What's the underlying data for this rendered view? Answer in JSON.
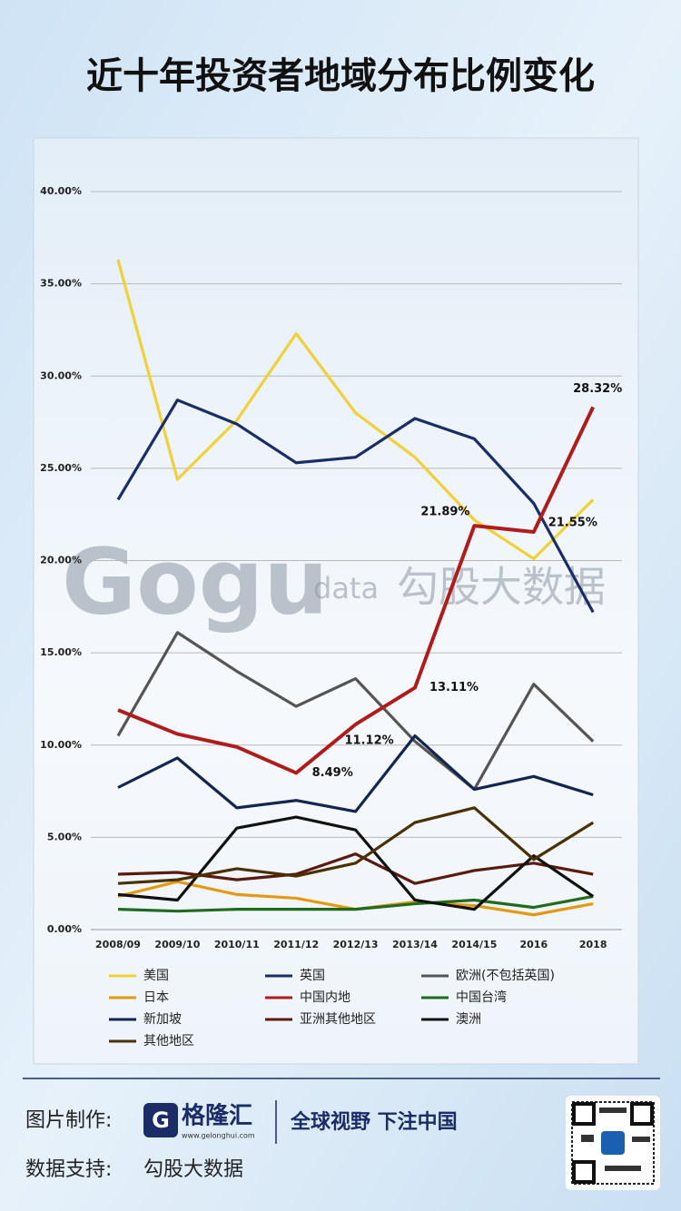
{
  "chart_data": {
    "type": "line",
    "title": "近十年投资者地域分布比例变化",
    "categories": [
      "2008/09",
      "2009/10",
      "2010/11",
      "2011/12",
      "2012/13",
      "2013/14",
      "2014/15",
      "2016",
      "2018"
    ],
    "ylim": [
      0,
      40
    ],
    "yticks": [
      {
        "value": 0,
        "label": "0.00%"
      },
      {
        "value": 5,
        "label": "5.00%"
      },
      {
        "value": 10,
        "label": "10.00%"
      },
      {
        "value": 15,
        "label": "15.00%"
      },
      {
        "value": 20,
        "label": "20.00%"
      },
      {
        "value": 25,
        "label": "25.00%"
      },
      {
        "value": 30,
        "label": "30.00%"
      },
      {
        "value": 35,
        "label": "35.00%"
      },
      {
        "value": 40,
        "label": "40.00%"
      }
    ],
    "grid": true,
    "series": [
      {
        "name": "美国",
        "color": "#f0d13a",
        "values": [
          36.3,
          24.4,
          27.6,
          32.3,
          28.0,
          25.6,
          22.2,
          20.1,
          23.3
        ]
      },
      {
        "name": "英国",
        "color": "#1b2d66",
        "values": [
          23.3,
          28.7,
          27.4,
          25.3,
          25.6,
          27.7,
          26.6,
          23.1,
          17.2
        ]
      },
      {
        "name": "欧洲(不包括英国)",
        "color": "#555555",
        "values": [
          10.5,
          16.1,
          14.0,
          12.1,
          13.6,
          10.2,
          7.6,
          13.3,
          10.2
        ]
      },
      {
        "name": "日本",
        "color": "#e39a12",
        "values": [
          1.8,
          2.6,
          1.9,
          1.7,
          1.1,
          1.5,
          1.3,
          0.8,
          1.4
        ]
      },
      {
        "name": "中国内地",
        "color": "#b01c1c",
        "values": [
          11.9,
          10.6,
          9.9,
          8.49,
          11.12,
          13.11,
          21.89,
          21.55,
          28.32
        ],
        "value_labels": [
          null,
          null,
          null,
          "8.49%",
          "11.12%",
          "13.11%",
          "21.89%",
          "21.55%",
          "28.32%"
        ]
      },
      {
        "name": "中国台湾",
        "color": "#1f6b1f",
        "values": [
          1.1,
          1.0,
          1.1,
          1.1,
          1.1,
          1.4,
          1.6,
          1.2,
          1.8
        ]
      },
      {
        "name": "新加坡",
        "color": "#14264f",
        "values": [
          7.7,
          9.3,
          6.6,
          7.0,
          6.4,
          10.5,
          7.6,
          8.3,
          7.3
        ]
      },
      {
        "name": "亚洲其他地区",
        "color": "#5a1a0c",
        "values": [
          3.0,
          3.1,
          2.7,
          3.0,
          4.1,
          2.5,
          3.2,
          3.6,
          3.0
        ]
      },
      {
        "name": "澳洲",
        "color": "#111111",
        "values": [
          1.9,
          1.6,
          5.5,
          6.1,
          5.4,
          1.6,
          1.1,
          4.0,
          1.8
        ]
      },
      {
        "name": "其他地区",
        "color": "#4a3104",
        "values": [
          2.5,
          2.7,
          3.3,
          2.9,
          3.6,
          5.8,
          6.6,
          3.8,
          5.8
        ]
      }
    ]
  },
  "watermark": {
    "logo": "Gogu",
    "sub": "data",
    "name": "勾股大数据"
  },
  "footer": {
    "made_by_label": "图片制作:",
    "brand": "格隆汇",
    "website": "www.gelonghui.com",
    "slogan": "全球视野 下注中国",
    "data_label": "数据支持:",
    "data_source": "勾股大数据"
  }
}
